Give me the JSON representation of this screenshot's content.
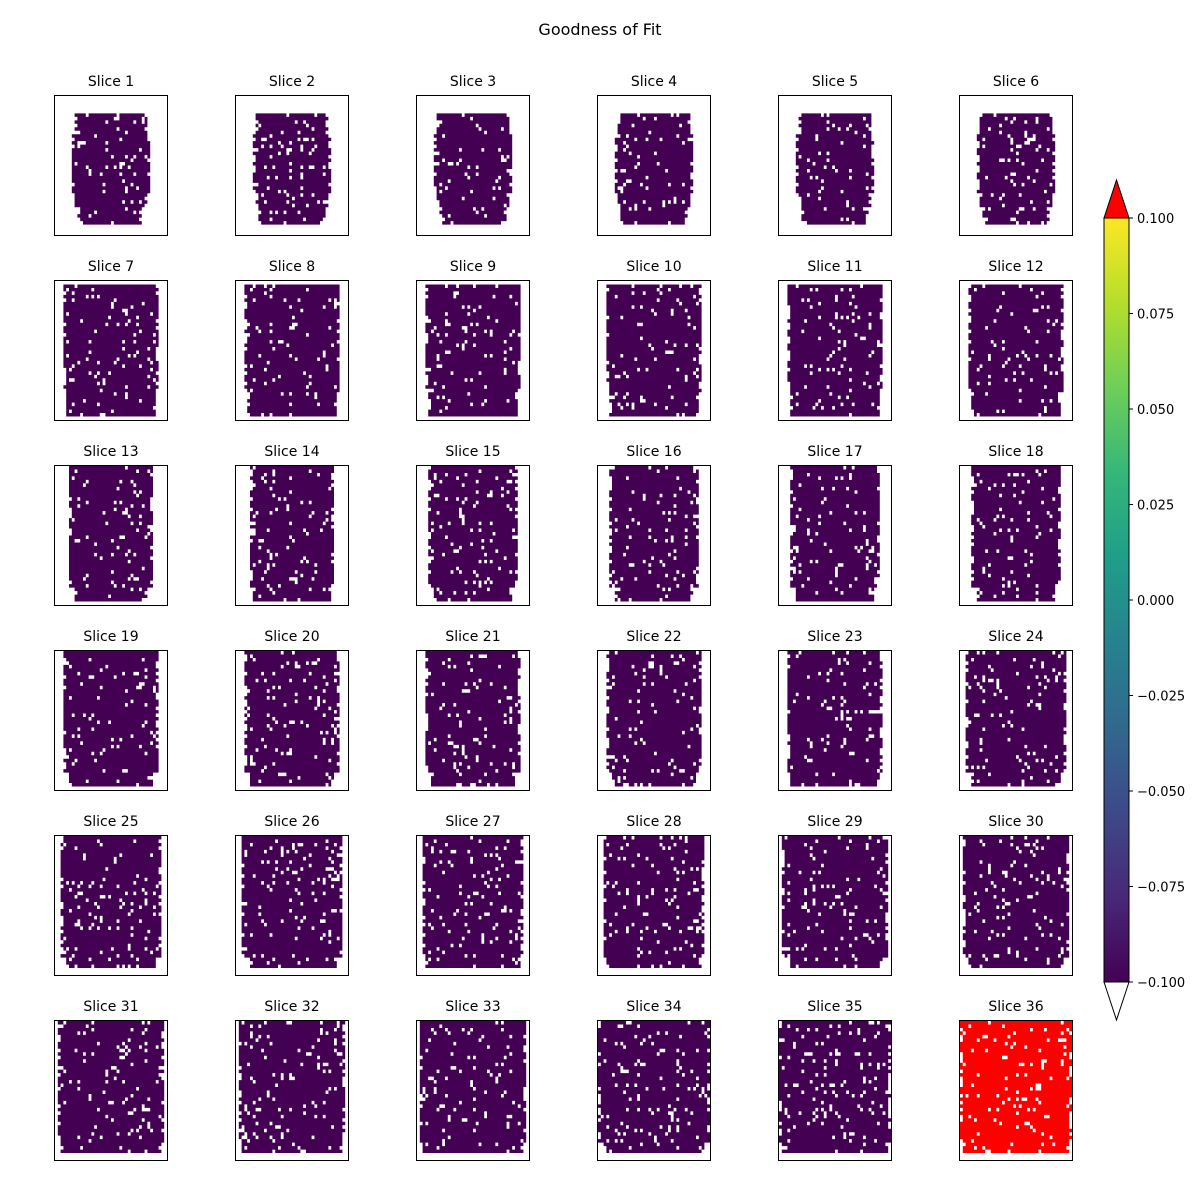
{
  "figure": {
    "title": "Goodness of Fit"
  },
  "chart_data": {
    "type": "heatmap",
    "title": "Goodness of Fit",
    "grid": false,
    "panels": [
      {
        "title": "Slice 1",
        "fill": "vmin"
      },
      {
        "title": "Slice 2",
        "fill": "vmin"
      },
      {
        "title": "Slice 3",
        "fill": "vmin"
      },
      {
        "title": "Slice 4",
        "fill": "vmin"
      },
      {
        "title": "Slice 5",
        "fill": "vmin"
      },
      {
        "title": "Slice 6",
        "fill": "vmin"
      },
      {
        "title": "Slice 7",
        "fill": "vmin"
      },
      {
        "title": "Slice 8",
        "fill": "vmin"
      },
      {
        "title": "Slice 9",
        "fill": "vmin"
      },
      {
        "title": "Slice 10",
        "fill": "vmin"
      },
      {
        "title": "Slice 11",
        "fill": "vmin"
      },
      {
        "title": "Slice 12",
        "fill": "vmin"
      },
      {
        "title": "Slice 13",
        "fill": "vmin"
      },
      {
        "title": "Slice 14",
        "fill": "vmin"
      },
      {
        "title": "Slice 15",
        "fill": "vmin"
      },
      {
        "title": "Slice 16",
        "fill": "vmin"
      },
      {
        "title": "Slice 17",
        "fill": "vmin"
      },
      {
        "title": "Slice 18",
        "fill": "vmin"
      },
      {
        "title": "Slice 19",
        "fill": "vmin"
      },
      {
        "title": "Slice 20",
        "fill": "vmin"
      },
      {
        "title": "Slice 21",
        "fill": "vmin"
      },
      {
        "title": "Slice 22",
        "fill": "vmin"
      },
      {
        "title": "Slice 23",
        "fill": "vmin"
      },
      {
        "title": "Slice 24",
        "fill": "vmin"
      },
      {
        "title": "Slice 25",
        "fill": "vmin"
      },
      {
        "title": "Slice 26",
        "fill": "vmin"
      },
      {
        "title": "Slice 27",
        "fill": "vmin"
      },
      {
        "title": "Slice 28",
        "fill": "vmin"
      },
      {
        "title": "Slice 29",
        "fill": "vmin"
      },
      {
        "title": "Slice 30",
        "fill": "vmin"
      },
      {
        "title": "Slice 31",
        "fill": "vmin"
      },
      {
        "title": "Slice 32",
        "fill": "vmin"
      },
      {
        "title": "Slice 33",
        "fill": "vmin"
      },
      {
        "title": "Slice 34",
        "fill": "vmin"
      },
      {
        "title": "Slice 35",
        "fill": "vmin"
      },
      {
        "title": "Slice 36",
        "fill": "over"
      }
    ],
    "colorbar": {
      "colormap": "viridis",
      "vmin": -0.1,
      "vmax": 0.1,
      "extend": "both",
      "over_color": "#ff0000",
      "under_color": "#ffffff",
      "ticks": [
        "0.100",
        "0.075",
        "0.050",
        "0.025",
        "0.000",
        "−0.025",
        "−0.050",
        "−0.075",
        "−0.100"
      ]
    }
  },
  "colors": {
    "vmin": "#440154",
    "over": "#ff0000",
    "background": "#ffffff"
  }
}
